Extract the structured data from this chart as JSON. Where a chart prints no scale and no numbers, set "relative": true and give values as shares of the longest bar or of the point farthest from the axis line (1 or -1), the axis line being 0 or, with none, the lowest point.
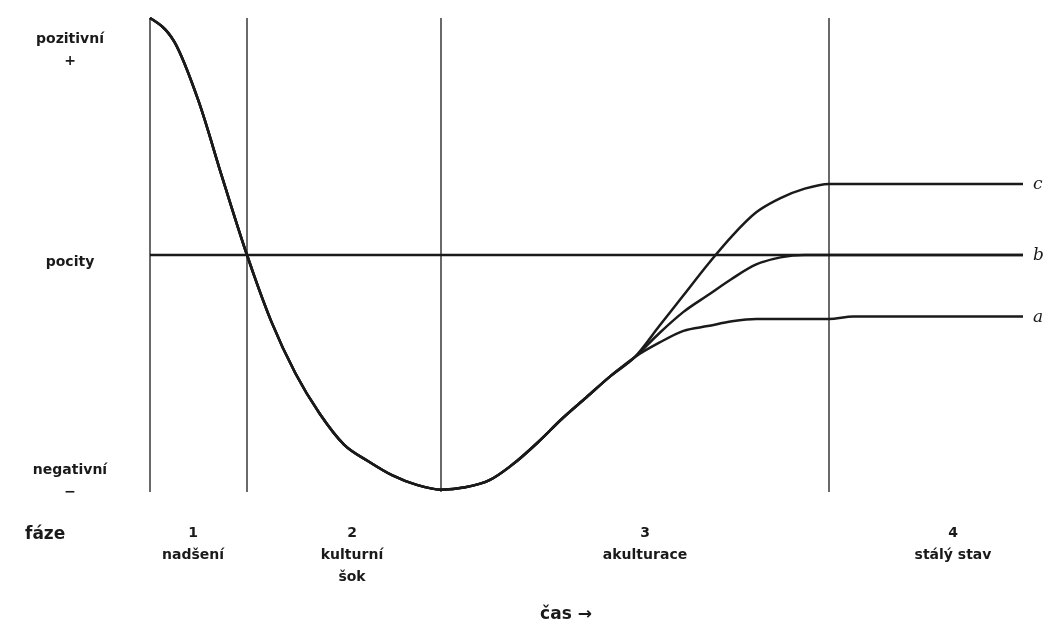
{
  "chart_data": {
    "type": "line",
    "relative": true,
    "categories": [
      null,
      null,
      null,
      null,
      null,
      null,
      null,
      null,
      null,
      null,
      null,
      null,
      null,
      null,
      null,
      null,
      null,
      null,
      null,
      null,
      null,
      null,
      null,
      null,
      null,
      null,
      null,
      null,
      null,
      null,
      null,
      null,
      null,
      null,
      null,
      null,
      null
    ],
    "annotations": [
      "pozitivní\n+",
      "pocity",
      "negativní\n−",
      "fáze",
      "1\nnadšení",
      "2\nkulturní\nšok",
      "3\nakulturace",
      "4\nstálý stav",
      "čas →"
    ],
    "ref_lines": [
      {
        "axis": "y",
        "value": 0
      }
    ],
    "grid": "x",
    "marker": "none",
    "line_style": "solid",
    "series": [
      {
        "name": "c",
        "color": "#1a1a1a",
        "values": [
          1.0,
          0.9,
          0.65,
          0.32,
          0,
          -0.28,
          -0.5,
          -0.67,
          -0.8,
          -0.87,
          -0.93,
          -0.97,
          -0.99,
          -0.98,
          -0.95,
          -0.88,
          -0.79,
          -0.69,
          -0.6,
          -0.51,
          -0.43,
          -0.3,
          -0.17,
          -0.04,
          0.08,
          0.18,
          0.24,
          0.28,
          0.3,
          0.3,
          0.3,
          0.3,
          0.3,
          0.3,
          0.3,
          0.3,
          0.3
        ]
      },
      {
        "name": "b",
        "color": "#1a1a1a",
        "values": [
          1.0,
          0.9,
          0.65,
          0.32,
          0,
          -0.28,
          -0.5,
          -0.67,
          -0.8,
          -0.87,
          -0.93,
          -0.97,
          -0.99,
          -0.98,
          -0.95,
          -0.88,
          -0.79,
          -0.69,
          -0.6,
          -0.51,
          -0.43,
          -0.33,
          -0.24,
          -0.17,
          -0.1,
          -0.04,
          -0.01,
          0,
          0,
          0,
          0,
          0,
          0,
          0,
          0,
          0,
          0
        ]
      },
      {
        "name": "a",
        "color": "#1a1a1a",
        "values": [
          1.0,
          0.9,
          0.65,
          0.32,
          0,
          -0.28,
          -0.5,
          -0.67,
          -0.8,
          -0.87,
          -0.93,
          -0.97,
          -0.99,
          -0.98,
          -0.95,
          -0.88,
          -0.79,
          -0.69,
          -0.6,
          -0.51,
          -0.43,
          -0.37,
          -0.32,
          -0.3,
          -0.28,
          -0.27,
          -0.27,
          -0.27,
          -0.27,
          -0.26,
          -0.26,
          -0.26,
          -0.26,
          -0.26,
          -0.26,
          -0.26,
          -0.26
        ]
      }
    ]
  }
}
